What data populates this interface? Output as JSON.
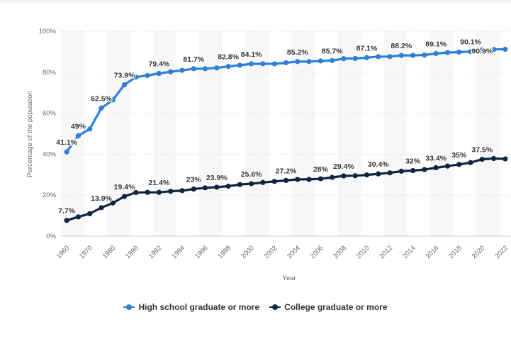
{
  "chart_data": {
    "type": "line",
    "title": "",
    "xlabel": "Year",
    "ylabel": "Percentage of the population",
    "ylim": [
      0,
      100
    ],
    "yticks": [
      "0%",
      "20%",
      "40%",
      "60%",
      "80%",
      "100%"
    ],
    "xtick_labels": [
      "1960",
      "1970",
      "1980",
      "1990",
      "1992",
      "1994",
      "1996",
      "1998",
      "2000",
      "2002",
      "2004",
      "2006",
      "2008",
      "2010",
      "2012",
      "2014",
      "2016",
      "2018",
      "2020",
      "2022"
    ],
    "categories": [
      "1960",
      "1965",
      "1970",
      "1975",
      "1980",
      "1985",
      "1990",
      "1991",
      "1992",
      "1993",
      "1994",
      "1995",
      "1996",
      "1997",
      "1998",
      "1999",
      "2000",
      "2001",
      "2002",
      "2003",
      "2004",
      "2005",
      "2006",
      "2007",
      "2008",
      "2009",
      "2010",
      "2011",
      "2012",
      "2013",
      "2014",
      "2015",
      "2016",
      "2017",
      "2018",
      "2019",
      "2020",
      "2021",
      "2022"
    ],
    "series": [
      {
        "name": "High school graduate or more",
        "color": "#2f7ed8",
        "values": [
          41.1,
          49,
          52.3,
          62.5,
          66.5,
          73.9,
          77.6,
          78.4,
          79.4,
          80.2,
          80.9,
          81.7,
          81.7,
          82.1,
          82.8,
          83.4,
          84.1,
          84.1,
          84.1,
          84.6,
          85.2,
          85.2,
          85.5,
          85.7,
          86.6,
          86.7,
          87.1,
          87.6,
          87.6,
          88.2,
          88.2,
          88.4,
          89.1,
          89.6,
          89.8,
          90.1,
          90.9,
          91.1,
          91.2
        ],
        "labels": {
          "0": "41.1%",
          "1": "49%",
          "3": "62.5%",
          "5": "73.9%",
          "8": "79.4%",
          "11": "81.7%",
          "14": "82.8%",
          "16": "84.1%",
          "20": "85.2%",
          "23": "85.7%",
          "26": "87.1%",
          "29": "88.2%",
          "32": "89.1%",
          "35": "90.1%",
          "36": "90.9%"
        }
      },
      {
        "name": "College graduate or more",
        "color": "#0d2541",
        "values": [
          7.7,
          9.4,
          11,
          13.9,
          16.2,
          19.4,
          21.3,
          21.4,
          21.4,
          21.9,
          22.2,
          23,
          23.6,
          23.9,
          24.4,
          25.2,
          25.6,
          26.2,
          26.7,
          27.2,
          27.7,
          27.7,
          28,
          28.7,
          29.4,
          29.5,
          29.9,
          30.4,
          30.9,
          31.7,
          32,
          32.5,
          33.4,
          34.2,
          35,
          35.9,
          37.5,
          37.9,
          37.7
        ],
        "labels": {
          "0": "7.7%",
          "3": "13.9%",
          "5": "19.4%",
          "8": "21.4%",
          "11": "23%",
          "13": "23.9%",
          "16": "25.6%",
          "19": "27.2%",
          "22": "28%",
          "24": "29.4%",
          "27": "30.4%",
          "30": "32%",
          "32": "33.4%",
          "34": "35%",
          "36": "37.5%"
        }
      }
    ],
    "legend_position": "bottom"
  }
}
